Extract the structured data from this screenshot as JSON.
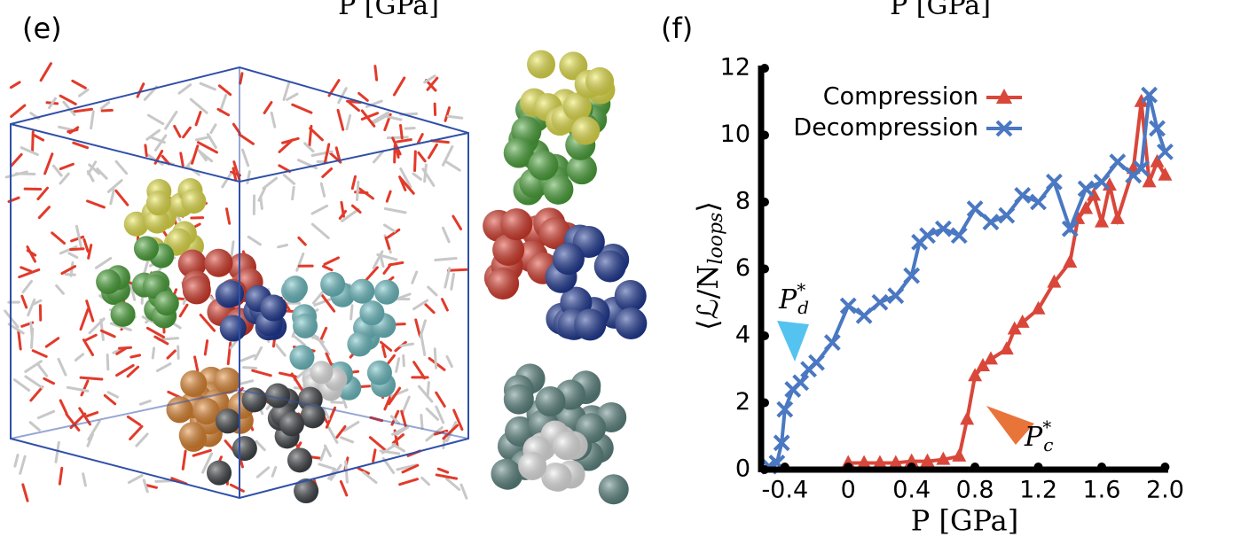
{
  "panel_labels": {
    "e": "(e)",
    "f": "(f)"
  },
  "top_labels": [
    "P [GPa]",
    "P [GPa]"
  ],
  "chart_data": {
    "type": "line",
    "x_label": "P [GPa]",
    "y_label": {
      "main": "⟨ℒ/N",
      "sub": "loops",
      "close": "⟩"
    },
    "xlim": [
      -0.55,
      2.02
    ],
    "ylim": [
      0,
      12
    ],
    "xticks": [
      -0.4,
      0,
      0.4,
      0.8,
      1.2,
      1.6,
      {
        "value": 2,
        "label": "2.0"
      }
    ],
    "yticks": [
      0,
      2,
      4,
      6,
      8,
      10,
      12
    ],
    "legend": "upper-right",
    "series": [
      {
        "name": "Compression",
        "color": "#d9473a",
        "marker": "triangle",
        "x": [
          0,
          0.1,
          0.2,
          0.3,
          0.4,
          0.5,
          0.6,
          0.7,
          0.75,
          0.8,
          0.85,
          0.9,
          1.0,
          1.05,
          1.1,
          1.2,
          1.3,
          1.4,
          1.45,
          1.5,
          1.55,
          1.6,
          1.65,
          1.7,
          1.8,
          1.85,
          1.9,
          1.95,
          2.0
        ],
        "values": [
          0.2,
          0.2,
          0.2,
          0.2,
          0.25,
          0.25,
          0.3,
          0.4,
          1.5,
          2.8,
          3.1,
          3.3,
          3.6,
          4.2,
          4.4,
          4.8,
          5.6,
          6.2,
          7.5,
          7.8,
          8.2,
          7.4,
          8.5,
          7.5,
          9.0,
          11.0,
          8.6,
          9.2,
          8.8
        ]
      },
      {
        "name": "Decompression",
        "color": "#4a78c2",
        "marker": "cross",
        "x": [
          2.0,
          1.95,
          1.9,
          1.85,
          1.8,
          1.7,
          1.6,
          1.5,
          1.4,
          1.3,
          1.2,
          1.1,
          1.0,
          0.9,
          0.8,
          0.7,
          0.6,
          0.5,
          0.45,
          0.4,
          0.3,
          0.2,
          0.1,
          0,
          -0.1,
          -0.2,
          -0.25,
          -0.3,
          -0.35,
          -0.4,
          -0.42,
          -0.45,
          -0.5
        ],
        "values": [
          9.5,
          10.2,
          11.2,
          9.0,
          8.8,
          9.2,
          8.6,
          8.4,
          7.2,
          8.6,
          8.0,
          8.2,
          7.6,
          7.4,
          7.8,
          7.0,
          7.2,
          7.0,
          6.8,
          5.8,
          5.2,
          5.0,
          4.6,
          4.9,
          3.8,
          3.2,
          3.0,
          2.6,
          2.4,
          1.8,
          0.8,
          0.2,
          0.1
        ]
      }
    ],
    "annotations": [
      {
        "text": "P",
        "sub": "d",
        "sup": "*"
      },
      {
        "text": "P",
        "sub": "c",
        "sup": "*"
      }
    ]
  }
}
